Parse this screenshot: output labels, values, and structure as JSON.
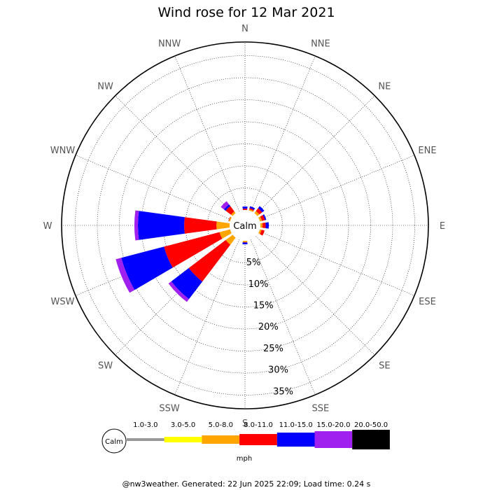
{
  "title": "Wind rose for 12 Mar 2021",
  "calm_label": "Calm",
  "unit_label": "mph",
  "footer": "@nw3weather. Generated: 22 Jun 2025 22:09; Load time: 0.24 s",
  "legend": [
    {
      "label": "1.0-3.0",
      "color": "#999999"
    },
    {
      "label": "3.0-5.0",
      "color": "#ffff00"
    },
    {
      "label": "5.0-8.0",
      "color": "#ffa500"
    },
    {
      "label": "8.0-11.0",
      "color": "#ff0000"
    },
    {
      "label": "11.0-15.0",
      "color": "#0000ff"
    },
    {
      "label": "15.0-20.0",
      "color": "#a020f0"
    },
    {
      "label": "20.0-50.0",
      "color": "#000000"
    }
  ],
  "chart_data": {
    "type": "wind-rose",
    "title": "Wind rose for 12 Mar 2021",
    "directions": [
      "N",
      "NNE",
      "NE",
      "ENE",
      "E",
      "ESE",
      "SE",
      "SSE",
      "S",
      "SSW",
      "SW",
      "WSW",
      "W",
      "WNW",
      "NW",
      "NNW"
    ],
    "rings_percent": [
      5,
      10,
      15,
      20,
      25,
      30,
      35
    ],
    "ring_labels": [
      "5%",
      "10%",
      "15%",
      "20%",
      "25%",
      "30%",
      "35%"
    ],
    "speed_bins_mph": [
      "1.0-3.0",
      "3.0-5.0",
      "5.0-8.0",
      "8.0-11.0",
      "11.0-15.0",
      "15.0-20.0",
      "20.0-50.0"
    ],
    "bin_colors": [
      "#999999",
      "#ffff00",
      "#ffa500",
      "#ff0000",
      "#0000ff",
      "#a020f0",
      "#000000"
    ],
    "cumulative_percent": {
      "N": [
        0,
        0,
        0.0,
        0.3,
        0.8,
        0.8,
        0.8
      ],
      "NNE": [
        0,
        0,
        0.3,
        0.6,
        1.0,
        1.0,
        1.0
      ],
      "NE": [
        0,
        0,
        0.6,
        1.4,
        2.0,
        2.0,
        2.0
      ],
      "ENE": [
        0,
        0,
        0.5,
        1.2,
        1.5,
        1.5,
        1.5
      ],
      "E": [
        0,
        0,
        0.5,
        1.2,
        1.9,
        1.9,
        1.9
      ],
      "ESE": [
        0,
        0,
        0.4,
        1.1,
        1.1,
        1.1,
        1.1
      ],
      "SE": [
        0,
        0,
        0.0,
        0.0,
        0.0,
        0.0,
        0.0
      ],
      "SSE": [
        0,
        0,
        0.0,
        0.0,
        0.0,
        0.0,
        0.0
      ],
      "S": [
        0,
        0,
        0.3,
        0.4,
        0.8,
        0.8,
        0.8
      ],
      "SSW": [
        0,
        0,
        0.0,
        0.0,
        0.0,
        0.0,
        0.0
      ],
      "SW": [
        0,
        0,
        2.0,
        12.5,
        17.5,
        18.3,
        18.3
      ],
      "WSW": [
        0,
        0,
        2.5,
        15.5,
        25.5,
        26.8,
        26.8
      ],
      "W": [
        0,
        0,
        3.0,
        10.3,
        20.8,
        21.6,
        21.6
      ],
      "WNW": [
        0,
        0,
        0.3,
        0.4,
        0.4,
        0.4,
        0.4
      ],
      "NW": [
        0,
        0,
        0.5,
        2.0,
        2.5,
        3.4,
        3.4
      ],
      "NNW": [
        0,
        0,
        0.0,
        0.0,
        0.0,
        0.0,
        0.0
      ]
    },
    "grid": true
  }
}
